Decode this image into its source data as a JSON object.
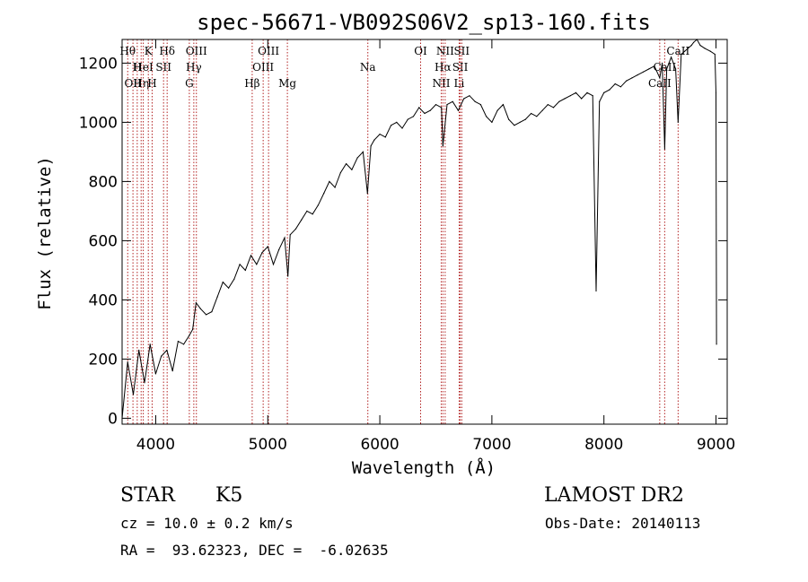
{
  "chart_data": {
    "type": "line",
    "title": "spec-56671-VB092S06V2_sp13-160.fits",
    "xlabel": "Wavelength (Å)",
    "ylabel": "Flux (relative)",
    "xlim": [
      3700,
      9100
    ],
    "ylim": [
      -20,
      1280
    ],
    "xticks": [
      4000,
      5000,
      6000,
      7000,
      8000,
      9000
    ],
    "yticks": [
      0,
      200,
      400,
      600,
      800,
      1000,
      1200
    ],
    "color": "#000000",
    "line_color": "#b22222",
    "series": [
      {
        "x": [
          3700,
          3750,
          3800,
          3850,
          3900,
          3950,
          4000,
          4050,
          4100,
          4150,
          4200,
          4250,
          4300,
          4330,
          4360,
          4400,
          4450,
          4500,
          4550,
          4600,
          4650,
          4700,
          4750,
          4800,
          4850,
          4900,
          4950,
          5000,
          5050,
          5100,
          5150,
          5180,
          5200,
          5250,
          5300,
          5350,
          5400,
          5450,
          5500,
          5550,
          5600,
          5650,
          5700,
          5750,
          5800,
          5850,
          5890,
          5920,
          5950,
          6000,
          6050,
          6100,
          6150,
          6200,
          6250,
          6300,
          6350,
          6400,
          6450,
          6500,
          6550,
          6563,
          6600,
          6650,
          6700,
          6750,
          6800,
          6850,
          6900,
          6950,
          7000,
          7050,
          7100,
          7150,
          7200,
          7250,
          7300,
          7350,
          7400,
          7450,
          7500,
          7550,
          7600,
          7650,
          7700,
          7750,
          7800,
          7850,
          7900,
          7930,
          7960,
          8000,
          8050,
          8100,
          8150,
          8200,
          8250,
          8300,
          8350,
          8400,
          8450,
          8498,
          8520,
          8542,
          8560,
          8600,
          8640,
          8662,
          8690,
          8720,
          8750,
          8780,
          8800,
          8830,
          8860,
          8900,
          8950,
          8990,
          9000,
          9005
        ],
        "values": [
          0,
          190,
          80,
          230,
          120,
          250,
          150,
          210,
          230,
          160,
          260,
          250,
          280,
          300,
          390,
          370,
          350,
          360,
          410,
          460,
          440,
          470,
          520,
          500,
          550,
          520,
          560,
          580,
          520,
          570,
          610,
          480,
          620,
          640,
          670,
          700,
          690,
          720,
          760,
          800,
          780,
          830,
          860,
          840,
          880,
          900,
          760,
          920,
          940,
          960,
          950,
          990,
          1000,
          980,
          1010,
          1020,
          1050,
          1030,
          1040,
          1060,
          1050,
          920,
          1060,
          1070,
          1040,
          1080,
          1090,
          1070,
          1060,
          1020,
          1000,
          1040,
          1060,
          1010,
          990,
          1000,
          1010,
          1030,
          1020,
          1040,
          1060,
          1050,
          1070,
          1080,
          1090,
          1100,
          1080,
          1100,
          1090,
          430,
          1070,
          1100,
          1110,
          1130,
          1120,
          1140,
          1150,
          1160,
          1170,
          1180,
          1190,
          1150,
          1200,
          910,
          1180,
          1220,
          1180,
          1000,
          1230,
          1240,
          1250,
          1260,
          1270,
          1280,
          1260,
          1250,
          1240,
          1230,
          1100,
          250
        ]
      }
    ],
    "lines": [
      {
        "x": 3750,
        "label": "Hθ",
        "row": 0
      },
      {
        "x": 3797,
        "label": "OII",
        "row": 2
      },
      {
        "x": 3835,
        "label": "H",
        "row": 1
      },
      {
        "x": 3870,
        "label": "Hη",
        "row": 2
      },
      {
        "x": 3889,
        "label": "HeI",
        "row": 1
      },
      {
        "x": 3934,
        "label": "K",
        "row": 0
      },
      {
        "x": 3968,
        "label": "H",
        "row": 2
      },
      {
        "x": 4070,
        "label": "SII",
        "row": 1
      },
      {
        "x": 4102,
        "label": "Hδ",
        "row": 0
      },
      {
        "x": 4300,
        "label": "G",
        "row": 2
      },
      {
        "x": 4340,
        "label": "Hγ",
        "row": 1
      },
      {
        "x": 4363,
        "label": "OIII",
        "row": 0
      },
      {
        "x": 4861,
        "label": "Hβ",
        "row": 2
      },
      {
        "x": 4959,
        "label": "OIII",
        "row": 1
      },
      {
        "x": 5007,
        "label": "OIII",
        "row": 0
      },
      {
        "x": 5175,
        "label": "Mg",
        "row": 2
      },
      {
        "x": 5893,
        "label": "Na",
        "row": 1
      },
      {
        "x": 6364,
        "label": "OI",
        "row": 0
      },
      {
        "x": 6548,
        "label": "NII",
        "row": 2
      },
      {
        "x": 6563,
        "label": "Hα",
        "row": 1
      },
      {
        "x": 6583,
        "label": "NII",
        "row": 0
      },
      {
        "x": 6708,
        "label": "Li",
        "row": 2
      },
      {
        "x": 6717,
        "label": "SII",
        "row": 1
      },
      {
        "x": 6731,
        "label": "SII",
        "row": 0
      },
      {
        "x": 8498,
        "label": "CaII",
        "row": 2
      },
      {
        "x": 8542,
        "label": "CaII",
        "row": 1
      },
      {
        "x": 8662,
        "label": "CaII",
        "row": 0
      }
    ]
  },
  "info": {
    "object_type": "STAR",
    "subclass": "K5",
    "survey": "LAMOST DR2",
    "cz": "cz = 10.0 ± 0.2 km/s",
    "obs_date": "Obs-Date: 20140113",
    "radec": "RA =  93.62323, DEC =  -6.02635"
  }
}
